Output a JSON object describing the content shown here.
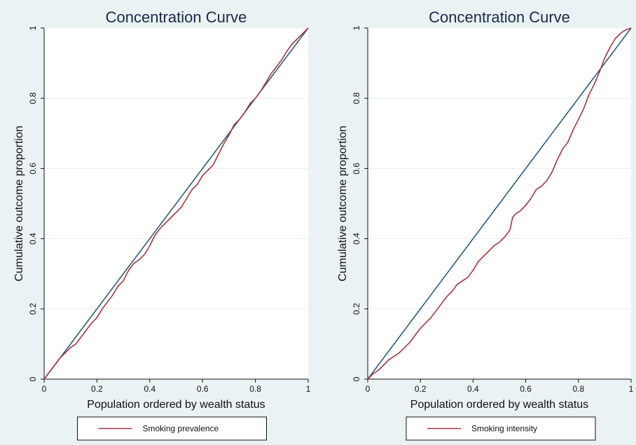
{
  "chart_data": [
    {
      "type": "line",
      "title": "Concentration Curve",
      "xlabel": "Population ordered by wealth status",
      "ylabel": "Cumulative outcome proportion",
      "xlim": [
        0,
        1
      ],
      "ylim": [
        0,
        1
      ],
      "xticks": [
        "0",
        "0.2",
        "0.4",
        "0.6",
        "0.8",
        "1"
      ],
      "yticks": [
        "0",
        "0.2",
        "0.4",
        "0.6",
        "0.8",
        "1"
      ],
      "grid": true,
      "legend_position": "bottom",
      "series": [
        {
          "name": "",
          "color": "#2b5c7e",
          "x": [
            0,
            1
          ],
          "y": [
            0,
            1
          ]
        },
        {
          "name": "Smoking prevalence",
          "color": "#a3363c",
          "x": [
            0,
            0.02,
            0.04,
            0.06,
            0.08,
            0.1,
            0.12,
            0.14,
            0.16,
            0.18,
            0.2,
            0.22,
            0.24,
            0.26,
            0.28,
            0.3,
            0.32,
            0.34,
            0.36,
            0.38,
            0.4,
            0.42,
            0.44,
            0.46,
            0.48,
            0.5,
            0.52,
            0.54,
            0.56,
            0.58,
            0.6,
            0.62,
            0.64,
            0.66,
            0.68,
            0.7,
            0.72,
            0.74,
            0.76,
            0.78,
            0.8,
            0.82,
            0.84,
            0.86,
            0.88,
            0.9,
            0.92,
            0.94,
            0.96,
            0.98,
            1
          ],
          "y": [
            0,
            0.02,
            0.04,
            0.06,
            0.075,
            0.09,
            0.1,
            0.12,
            0.14,
            0.16,
            0.175,
            0.2,
            0.22,
            0.24,
            0.265,
            0.28,
            0.31,
            0.33,
            0.34,
            0.355,
            0.38,
            0.41,
            0.43,
            0.445,
            0.46,
            0.475,
            0.49,
            0.515,
            0.54,
            0.555,
            0.58,
            0.595,
            0.61,
            0.64,
            0.67,
            0.695,
            0.725,
            0.74,
            0.76,
            0.785,
            0.8,
            0.82,
            0.845,
            0.87,
            0.89,
            0.91,
            0.935,
            0.955,
            0.97,
            0.985,
            1
          ]
        }
      ]
    },
    {
      "type": "line",
      "title": "Concentration Curve",
      "xlabel": "Population ordered by wealth status",
      "ylabel": "Cumulative outcome proportion",
      "xlim": [
        0,
        1
      ],
      "ylim": [
        0,
        1
      ],
      "xticks": [
        "0",
        "0.2",
        "0.4",
        "0.6",
        "0.8",
        "1"
      ],
      "yticks": [
        "0",
        "0.2",
        "0.4",
        "0.6",
        "0.8",
        "1"
      ],
      "grid": true,
      "legend_position": "bottom",
      "series": [
        {
          "name": "",
          "color": "#2b5c7e",
          "x": [
            0,
            1
          ],
          "y": [
            0,
            1
          ]
        },
        {
          "name": "Smoking intensity",
          "color": "#a3363c",
          "x": [
            0,
            0.02,
            0.04,
            0.06,
            0.08,
            0.1,
            0.12,
            0.14,
            0.16,
            0.18,
            0.2,
            0.22,
            0.24,
            0.26,
            0.28,
            0.3,
            0.32,
            0.34,
            0.36,
            0.38,
            0.4,
            0.42,
            0.44,
            0.46,
            0.48,
            0.5,
            0.52,
            0.54,
            0.55,
            0.56,
            0.58,
            0.6,
            0.62,
            0.64,
            0.66,
            0.68,
            0.7,
            0.72,
            0.74,
            0.76,
            0.78,
            0.8,
            0.82,
            0.84,
            0.86,
            0.88,
            0.9,
            0.92,
            0.94,
            0.96,
            0.98,
            1
          ],
          "y": [
            0,
            0.015,
            0.025,
            0.04,
            0.055,
            0.065,
            0.075,
            0.09,
            0.105,
            0.125,
            0.145,
            0.16,
            0.175,
            0.195,
            0.215,
            0.235,
            0.25,
            0.27,
            0.28,
            0.29,
            0.31,
            0.335,
            0.35,
            0.365,
            0.38,
            0.39,
            0.405,
            0.425,
            0.46,
            0.47,
            0.48,
            0.495,
            0.515,
            0.54,
            0.55,
            0.565,
            0.59,
            0.625,
            0.655,
            0.675,
            0.71,
            0.74,
            0.77,
            0.81,
            0.84,
            0.875,
            0.915,
            0.945,
            0.97,
            0.985,
            0.995,
            1
          ]
        }
      ]
    }
  ]
}
